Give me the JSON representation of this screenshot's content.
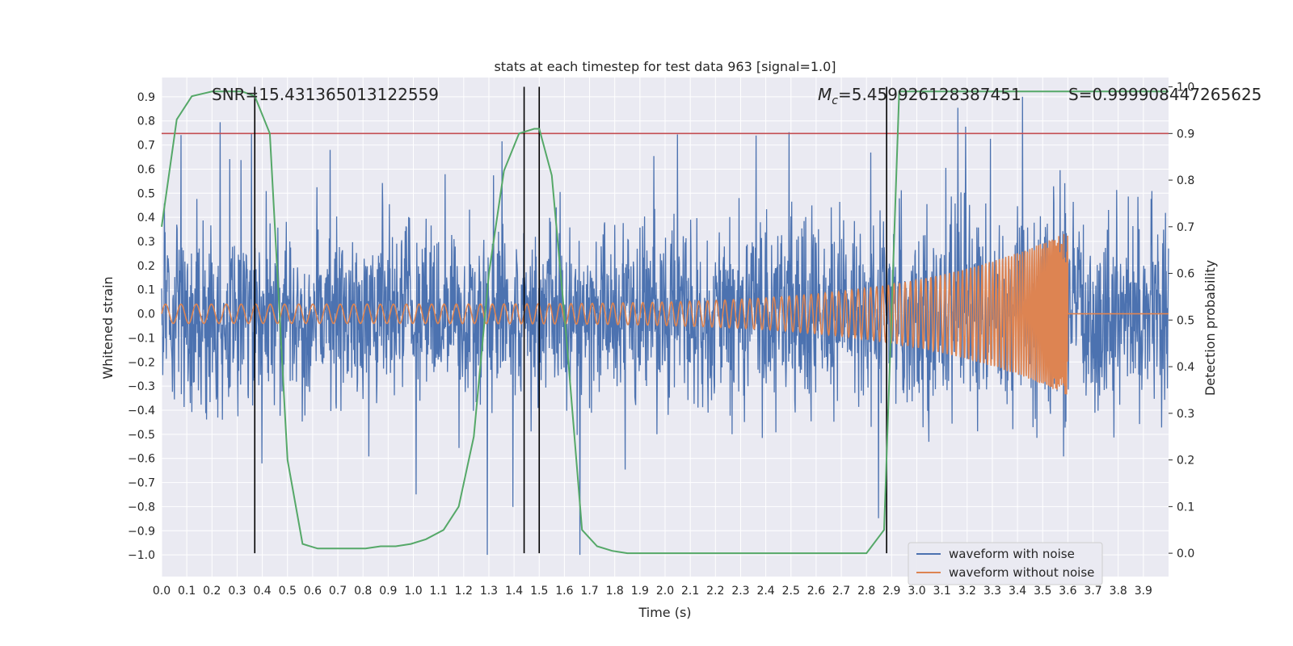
{
  "chart_data": {
    "type": "line",
    "title": "stats at each timestep for test data 963 [signal=1.0]",
    "xlabel": "Time (s)",
    "ylabel_left": "Whitened strain",
    "ylabel_right": "Detection probability",
    "xlim": [
      0.0,
      4.0
    ],
    "ylim_left": [
      -1.09,
      0.98
    ],
    "ylim_right": [
      -0.05,
      1.02
    ],
    "xticks": [
      "0.0",
      "0.1",
      "0.2",
      "0.3",
      "0.4",
      "0.5",
      "0.6",
      "0.7",
      "0.8",
      "0.9",
      "1.0",
      "1.1",
      "1.2",
      "1.3",
      "1.4",
      "1.5",
      "1.6",
      "1.7",
      "1.8",
      "1.9",
      "2.0",
      "2.1",
      "2.2",
      "2.3",
      "2.4",
      "2.5",
      "2.6",
      "2.7",
      "2.8",
      "2.9",
      "3.0",
      "3.1",
      "3.2",
      "3.3",
      "3.4",
      "3.5",
      "3.6",
      "3.7",
      "3.8",
      "3.9"
    ],
    "yticks_left": [
      "0.9",
      "0.8",
      "0.7",
      "0.6",
      "0.5",
      "0.4",
      "0.3",
      "0.2",
      "0.1",
      "0.0",
      "−0.1",
      "−0.2",
      "−0.3",
      "−0.4",
      "−0.5",
      "−0.6",
      "−0.7",
      "−0.8",
      "−0.9",
      "−1.0"
    ],
    "yticks_right": [
      "1.0",
      "0.9",
      "0.8",
      "0.7",
      "0.6",
      "0.5",
      "0.4",
      "0.3",
      "0.2",
      "0.1",
      "0.0"
    ],
    "grid": true,
    "legend_position": "bottom-right",
    "colors": {
      "noise": "#4c72b0",
      "clean": "#dd8452",
      "probability": "#55a868",
      "threshold": "#c44e52",
      "markers": "#000000",
      "plot_bg": "#eaeaf2",
      "grid": "#ffffff"
    },
    "series": [
      {
        "name": "waveform with noise",
        "description": "whitened strain with noise, roughly symmetric noise around 0, amplitude about ±0.5 with spikes",
        "amplitude": 0.3
      },
      {
        "name": "waveform without noise",
        "description": "chirp signal, growing amplitude and frequency until merger at 3.6 s, zero after",
        "t_start": 0.0,
        "t_merge": 3.6,
        "amplitude_start": 0.04,
        "amplitude_merge": 0.35
      }
    ],
    "probability_series": {
      "axis": "right",
      "x": [
        0.0,
        0.06,
        0.12,
        0.2,
        0.26,
        0.32,
        0.37,
        0.43,
        0.49,
        0.5,
        0.56,
        0.62,
        0.68,
        0.74,
        0.81,
        0.87,
        0.93,
        0.99,
        1.05,
        1.12,
        1.18,
        1.24,
        1.3,
        1.36,
        1.42,
        1.48,
        1.5,
        1.55,
        1.61,
        1.67,
        1.73,
        1.79,
        1.85,
        1.91,
        2.0,
        2.5,
        2.8,
        2.87,
        2.93,
        3.0,
        3.5,
        4.0
      ],
      "y": [
        0.7,
        0.93,
        0.98,
        0.99,
        0.99,
        0.99,
        0.98,
        0.9,
        0.3,
        0.2,
        0.02,
        0.01,
        0.01,
        0.01,
        0.01,
        0.015,
        0.015,
        0.02,
        0.03,
        0.05,
        0.1,
        0.25,
        0.6,
        0.82,
        0.9,
        0.91,
        0.91,
        0.81,
        0.45,
        0.05,
        0.015,
        0.005,
        0.0,
        0.0,
        0.0,
        0.0,
        0.0,
        0.05,
        0.99,
        0.99,
        0.99,
        0.99
      ]
    },
    "threshold": {
      "axis": "right",
      "value": 0.9
    },
    "vertical_markers": [
      0.37,
      1.44,
      1.5,
      2.88
    ],
    "annotations": {
      "snr": "SNR=15.431365013122559",
      "mc": "=5.459926128387451",
      "mc_symbol": "M",
      "mc_subscript": "c",
      "s": "S=0.999908447265625"
    },
    "legend": {
      "noise_label": "waveform with noise",
      "clean_label": "waveform without noise"
    }
  }
}
